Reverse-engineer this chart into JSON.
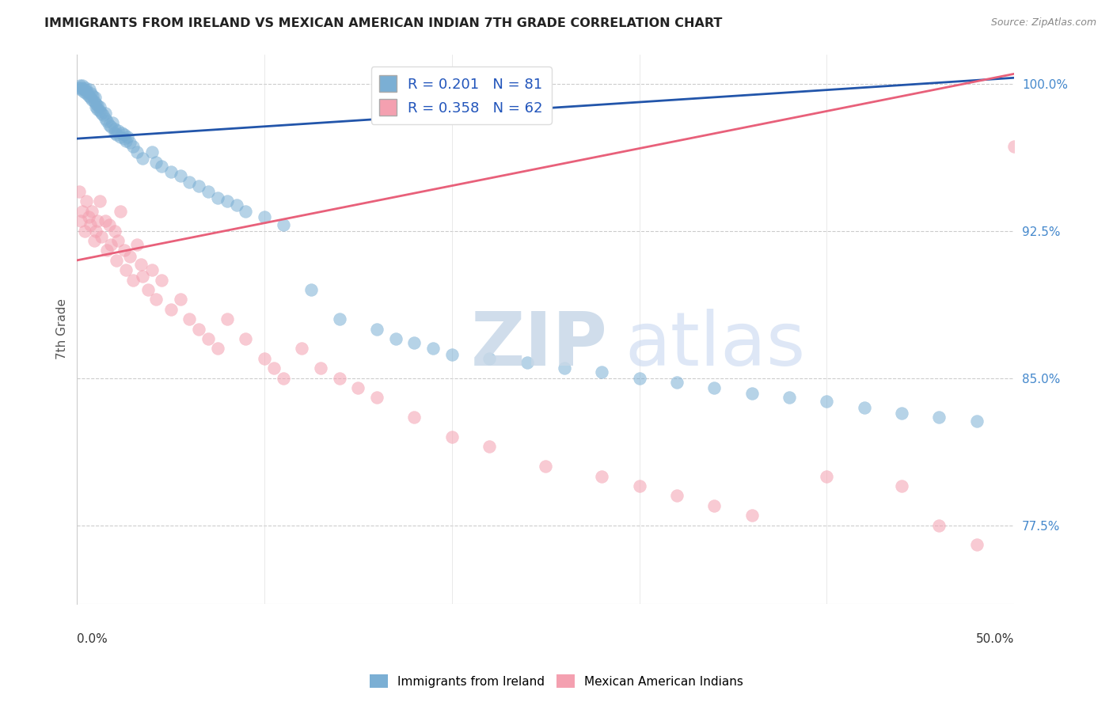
{
  "title": "IMMIGRANTS FROM IRELAND VS MEXICAN AMERICAN INDIAN 7TH GRADE CORRELATION CHART",
  "source": "Source: ZipAtlas.com",
  "ylabel": "7th Grade",
  "y_ticks": [
    77.5,
    85.0,
    92.5,
    100.0
  ],
  "y_tick_labels": [
    "77.5%",
    "85.0%",
    "92.5%",
    "100.0%"
  ],
  "xmin": 0.0,
  "xmax": 50.0,
  "ymin": 73.5,
  "ymax": 101.5,
  "blue_R": 0.201,
  "blue_N": 81,
  "pink_R": 0.358,
  "pink_N": 62,
  "blue_color": "#7BAFD4",
  "pink_color": "#F4A0B0",
  "blue_line_color": "#2255AA",
  "pink_line_color": "#E8607A",
  "legend_label_blue": "Immigrants from Ireland",
  "legend_label_pink": "Mexican American Indians",
  "blue_line_x0": 0.0,
  "blue_line_y0": 97.2,
  "blue_line_x1": 50.0,
  "blue_line_y1": 100.3,
  "pink_line_x0": 0.0,
  "pink_line_y0": 91.0,
  "pink_line_x1": 50.0,
  "pink_line_y1": 100.5,
  "blue_x": [
    0.1,
    0.15,
    0.2,
    0.25,
    0.3,
    0.35,
    0.4,
    0.45,
    0.5,
    0.55,
    0.6,
    0.65,
    0.7,
    0.75,
    0.8,
    0.85,
    0.9,
    0.95,
    1.0,
    1.0,
    1.1,
    1.1,
    1.2,
    1.2,
    1.3,
    1.4,
    1.5,
    1.5,
    1.6,
    1.7,
    1.8,
    1.9,
    2.0,
    2.0,
    2.1,
    2.2,
    2.3,
    2.4,
    2.5,
    2.5,
    2.6,
    2.7,
    2.8,
    3.0,
    3.2,
    3.5,
    4.0,
    4.2,
    4.5,
    5.0,
    5.5,
    6.0,
    6.5,
    7.0,
    7.5,
    8.0,
    8.5,
    9.0,
    10.0,
    11.0,
    12.5,
    14.0,
    16.0,
    17.0,
    18.0,
    19.0,
    20.0,
    22.0,
    24.0,
    26.0,
    28.0,
    30.0,
    32.0,
    34.0,
    36.0,
    38.0,
    40.0,
    42.0,
    44.0,
    46.0,
    48.0
  ],
  "blue_y": [
    99.8,
    99.9,
    99.7,
    99.8,
    99.9,
    99.6,
    99.7,
    99.8,
    99.5,
    99.6,
    99.4,
    99.7,
    99.3,
    99.5,
    99.2,
    99.4,
    99.1,
    99.3,
    99.0,
    98.8,
    98.9,
    98.7,
    98.6,
    98.8,
    98.5,
    98.4,
    98.2,
    98.5,
    98.1,
    97.9,
    97.8,
    98.0,
    97.5,
    97.7,
    97.4,
    97.6,
    97.3,
    97.5,
    97.2,
    97.4,
    97.1,
    97.3,
    97.0,
    96.8,
    96.5,
    96.2,
    96.5,
    96.0,
    95.8,
    95.5,
    95.3,
    95.0,
    94.8,
    94.5,
    94.2,
    94.0,
    93.8,
    93.5,
    93.2,
    92.8,
    89.5,
    88.0,
    87.5,
    87.0,
    86.8,
    86.5,
    86.2,
    86.0,
    85.8,
    85.5,
    85.3,
    85.0,
    84.8,
    84.5,
    84.2,
    84.0,
    83.8,
    83.5,
    83.2,
    83.0,
    82.8
  ],
  "pink_x": [
    0.1,
    0.2,
    0.3,
    0.4,
    0.5,
    0.6,
    0.7,
    0.8,
    0.9,
    1.0,
    1.1,
    1.2,
    1.3,
    1.5,
    1.6,
    1.7,
    1.8,
    2.0,
    2.1,
    2.2,
    2.3,
    2.5,
    2.6,
    2.8,
    3.0,
    3.2,
    3.4,
    3.5,
    3.8,
    4.0,
    4.2,
    4.5,
    5.0,
    5.5,
    6.0,
    6.5,
    7.0,
    7.5,
    8.0,
    9.0,
    10.0,
    10.5,
    11.0,
    12.0,
    13.0,
    14.0,
    15.0,
    16.0,
    18.0,
    20.0,
    22.0,
    25.0,
    28.0,
    30.0,
    32.0,
    34.0,
    36.0,
    40.0,
    44.0,
    46.0,
    48.0,
    50.0
  ],
  "pink_y": [
    94.5,
    93.0,
    93.5,
    92.5,
    94.0,
    93.2,
    92.8,
    93.5,
    92.0,
    92.5,
    93.0,
    94.0,
    92.2,
    93.0,
    91.5,
    92.8,
    91.8,
    92.5,
    91.0,
    92.0,
    93.5,
    91.5,
    90.5,
    91.2,
    90.0,
    91.8,
    90.8,
    90.2,
    89.5,
    90.5,
    89.0,
    90.0,
    88.5,
    89.0,
    88.0,
    87.5,
    87.0,
    86.5,
    88.0,
    87.0,
    86.0,
    85.5,
    85.0,
    86.5,
    85.5,
    85.0,
    84.5,
    84.0,
    83.0,
    82.0,
    81.5,
    80.5,
    80.0,
    79.5,
    79.0,
    78.5,
    78.0,
    80.0,
    79.5,
    77.5,
    76.5,
    96.8
  ]
}
